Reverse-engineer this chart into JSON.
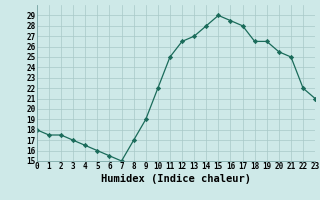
{
  "x": [
    0,
    1,
    2,
    3,
    4,
    5,
    6,
    7,
    8,
    9,
    10,
    11,
    12,
    13,
    14,
    15,
    16,
    17,
    18,
    19,
    20,
    21,
    22,
    23
  ],
  "y": [
    18,
    17.5,
    17.5,
    17,
    16.5,
    16,
    15.5,
    15,
    17,
    19,
    22,
    25,
    26.5,
    27,
    28,
    29,
    28.5,
    28,
    26.5,
    26.5,
    25.5,
    25,
    22,
    21
  ],
  "xlabel": "Humidex (Indice chaleur)",
  "line_color": "#1a6b5a",
  "marker": "D",
  "marker_size": 2.2,
  "bg_color": "#cee9e8",
  "grid_color": "#a8c8c8",
  "ylim": [
    15,
    30
  ],
  "xlim": [
    0,
    23
  ],
  "yticks": [
    15,
    16,
    17,
    18,
    19,
    20,
    21,
    22,
    23,
    24,
    25,
    26,
    27,
    28,
    29
  ],
  "xticks": [
    0,
    1,
    2,
    3,
    4,
    5,
    6,
    7,
    8,
    9,
    10,
    11,
    12,
    13,
    14,
    15,
    16,
    17,
    18,
    19,
    20,
    21,
    22,
    23
  ],
  "xtick_labels": [
    "0",
    "1",
    "2",
    "3",
    "4",
    "5",
    "6",
    "7",
    "8",
    "9",
    "10",
    "11",
    "12",
    "13",
    "14",
    "15",
    "16",
    "17",
    "18",
    "19",
    "20",
    "21",
    "22",
    "23"
  ],
  "ytick_labels": [
    "15",
    "16",
    "17",
    "18",
    "19",
    "20",
    "21",
    "22",
    "23",
    "24",
    "25",
    "26",
    "27",
    "28",
    "29"
  ],
  "tick_fontsize": 5.5,
  "xlabel_fontsize": 7.5,
  "linewidth": 0.9
}
